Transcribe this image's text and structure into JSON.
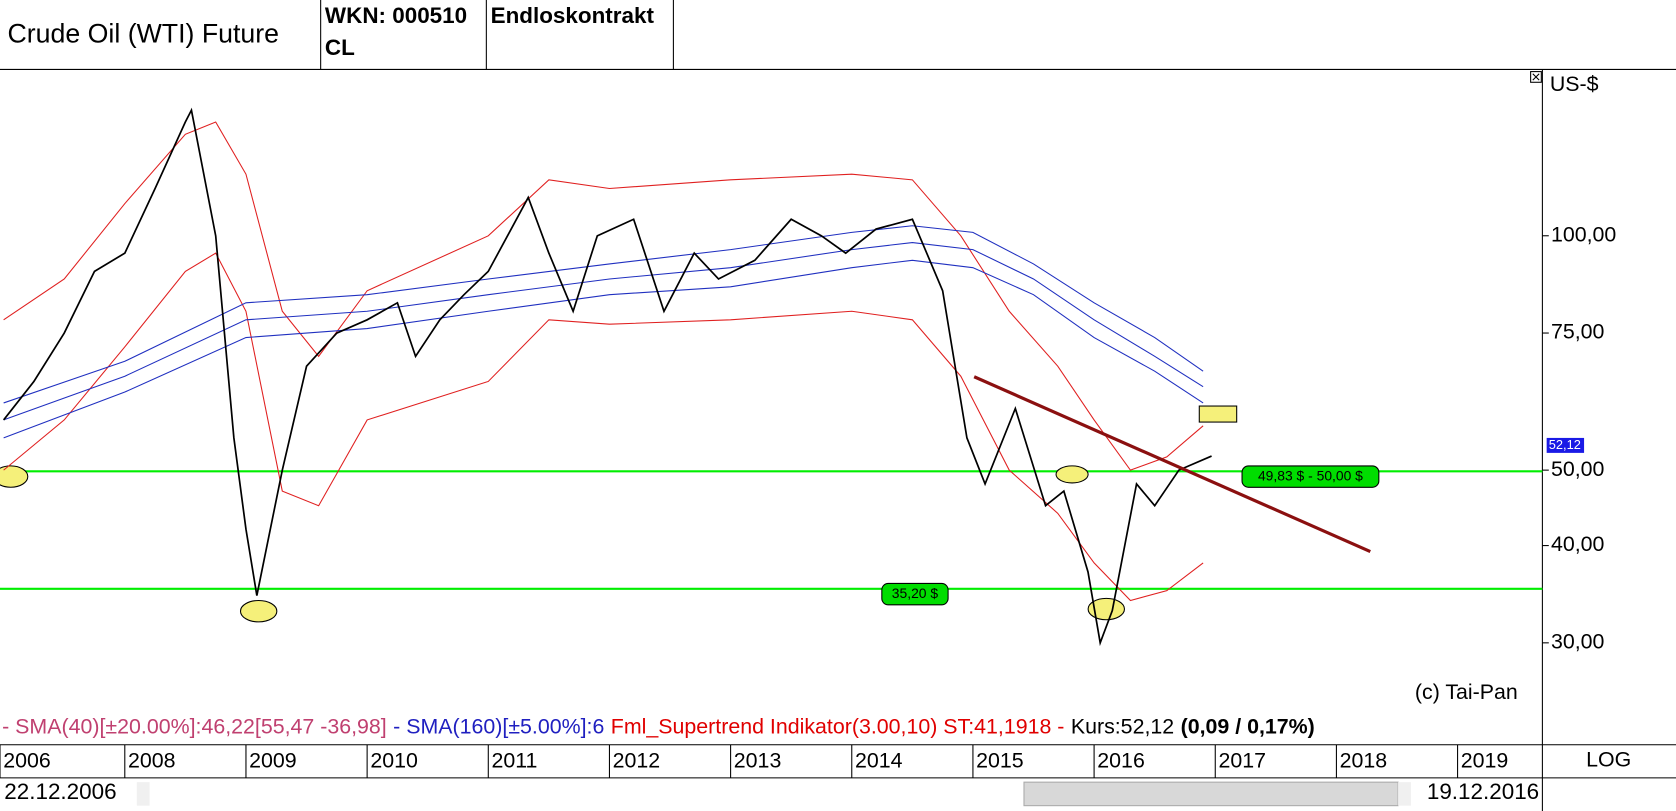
{
  "chart_data": {
    "type": "line",
    "title": "Crude Oil (WTI) Future",
    "header": {
      "wkn": "WKN: 000510",
      "symbol": "CL",
      "contract": "Endloskontrakt"
    },
    "unit": "US-$",
    "log_scale": true,
    "xlim": [
      2006.97,
      2019.7
    ],
    "xticks": [
      {
        "value": 2006.97,
        "label": "2006"
      },
      2008,
      2009,
      2010,
      2011,
      2012,
      2013,
      2014,
      2015,
      2016,
      2017,
      2018,
      2019
    ],
    "ylim": [
      24.4,
      162
    ],
    "yticks": [
      {
        "value": 30,
        "label": "30,00"
      },
      {
        "value": 40,
        "label": "40,00"
      },
      {
        "value": 50,
        "label": "50,00"
      },
      {
        "value": 75,
        "label": "75,00"
      },
      {
        "value": 100,
        "label": "100,00"
      }
    ],
    "series": [
      {
        "color": "#000000",
        "x": [
          2007.0,
          2007.25,
          2007.5,
          2007.75,
          2008.0,
          2008.25,
          2008.5,
          2008.55,
          2008.75,
          2008.9,
          2009.0,
          2009.09,
          2009.3,
          2009.5,
          2009.75,
          2010.0,
          2010.25,
          2010.4,
          2010.6,
          2010.8,
          2011.0,
          2011.33,
          2011.5,
          2011.7,
          2011.9,
          2012.2,
          2012.45,
          2012.7,
          2012.9,
          2013.2,
          2013.5,
          2013.75,
          2013.95,
          2014.2,
          2014.5,
          2014.75,
          2014.95,
          2015.1,
          2015.35,
          2015.6,
          2015.75,
          2015.95,
          2016.05,
          2016.15,
          2016.35,
          2016.5,
          2016.7,
          2016.97
        ],
        "values": [
          58,
          65,
          75,
          90,
          95,
          115,
          140,
          145,
          100,
          55,
          42,
          34.5,
          50,
          68,
          75,
          78,
          82,
          70,
          78,
          84,
          90,
          112,
          95,
          80,
          100,
          105,
          80,
          95,
          88,
          93,
          105,
          100,
          95,
          102,
          105,
          85,
          55,
          48,
          60,
          45,
          47,
          37,
          30,
          33,
          48,
          45,
          50,
          52.12
        ]
      },
      {
        "color": "#2030c0",
        "x": [
          2007,
          2008,
          2009,
          2010,
          2011,
          2012,
          2013,
          2014,
          2014.5,
          2015,
          2015.5,
          2016,
          2016.5,
          2016.9
        ],
        "values": [
          61,
          69,
          82,
          84,
          88,
          92,
          96,
          101,
          103,
          101,
          92,
          82,
          74,
          67
        ]
      },
      {
        "color": "#2030c0",
        "x": [
          2007,
          2008,
          2009,
          2010,
          2011,
          2012,
          2013,
          2014,
          2014.5,
          2015,
          2015.5,
          2016,
          2016.5,
          2016.9
        ],
        "values": [
          58,
          66,
          78,
          80,
          84,
          88,
          91,
          96,
          98,
          96,
          88,
          78,
          70,
          64
        ]
      },
      {
        "color": "#2030c0",
        "x": [
          2007,
          2008,
          2009,
          2010,
          2011,
          2012,
          2013,
          2014,
          2014.5,
          2015,
          2015.5,
          2016,
          2016.5,
          2016.9
        ],
        "values": [
          55,
          63,
          74,
          76,
          80,
          84,
          86,
          91,
          93,
          91,
          84,
          74,
          67,
          61
        ]
      },
      {
        "color": "#e02020",
        "x": [
          2007,
          2007.5,
          2008,
          2008.5,
          2008.75,
          2009,
          2009.3,
          2009.6,
          2010,
          2011,
          2011.5,
          2012,
          2013,
          2014,
          2014.5,
          2014.9,
          2015.3,
          2015.7,
          2016,
          2016.3,
          2016.6,
          2016.9
        ],
        "values": [
          78,
          88,
          110,
          135,
          140,
          120,
          80,
          70,
          85,
          100,
          118,
          115,
          118,
          120,
          118,
          100,
          80,
          68,
          58,
          50,
          52,
          57
        ]
      },
      {
        "color": "#e02020",
        "x": [
          2007,
          2007.5,
          2008,
          2008.5,
          2008.75,
          2009,
          2009.3,
          2009.6,
          2010,
          2011,
          2011.5,
          2012,
          2013,
          2014,
          2014.5,
          2014.9,
          2015.3,
          2015.7,
          2016,
          2016.3,
          2016.6,
          2016.9
        ],
        "values": [
          50,
          58,
          72,
          90,
          95,
          80,
          47,
          45,
          58,
          65,
          78,
          77,
          78,
          80,
          78,
          66,
          50,
          44,
          38,
          34,
          35,
          38
        ]
      }
    ],
    "hlines": [
      {
        "value": 49.83,
        "label": "49,83 $ - 50,00 $",
        "color": "#00ee00"
      },
      {
        "value": 35.2,
        "label": "35,20 $",
        "color": "#00ee00"
      }
    ],
    "trendline": {
      "x": [
        2015.01,
        2018.28
      ],
      "values": [
        65.9,
        39.3
      ],
      "color": "#8b1010"
    },
    "last_price": {
      "value": 52.12,
      "label": "52,12"
    },
    "copyright": "(c) Tai-Pan",
    "scale_mode": "LOG",
    "legend": [
      {
        "text": "- SMA(40)[±20.00%]:46,22[55,47 -36,98]",
        "color": "#c04070"
      },
      {
        "text": "- SMA(160)[±5.00%]:6",
        "color": "#2020c0"
      },
      {
        "text": "Fml_Supertrend Indikator(3.00,10) ST:41,1918 -",
        "color": "#e00000"
      },
      {
        "text": "Kurs:52,12",
        "color": "#000000"
      },
      {
        "text": "(0,09 / 0,17%)",
        "color": "#000000"
      }
    ],
    "date_from": "22.12.2006",
    "date_to": "19.12.2016"
  }
}
